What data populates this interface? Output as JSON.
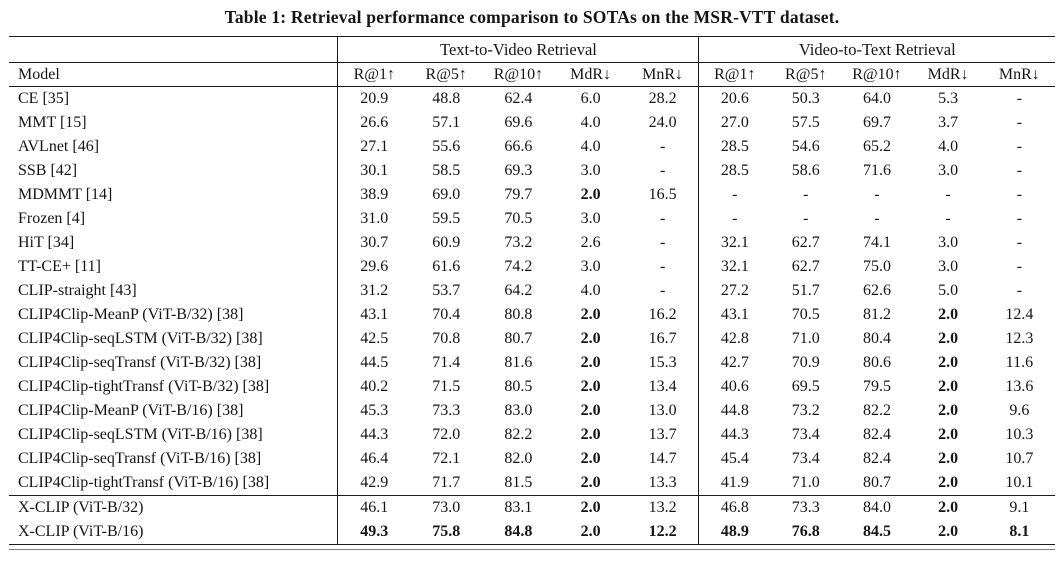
{
  "title": "Table 1: Retrieval performance comparison to SOTAs on the MSR-VTT dataset.",
  "table": {
    "group_headers": [
      {
        "label": "",
        "span": 1
      },
      {
        "label": "Text-to-Video Retrieval",
        "span": 5
      },
      {
        "label": "Video-to-Text Retrieval",
        "span": 5
      }
    ],
    "column_headers": [
      "Model",
      "R@1↑",
      "R@5↑",
      "R@10↑",
      "MdR↓",
      "MnR↓",
      "R@1↑",
      "R@5↑",
      "R@10↑",
      "MdR↓",
      "MnR↓"
    ],
    "rows": [
      {
        "model": "CE [35]",
        "values": [
          "20.9",
          "48.8",
          "62.4",
          "6.0",
          "28.2",
          "20.6",
          "50.3",
          "64.0",
          "5.3",
          "-"
        ],
        "bold": []
      },
      {
        "model": "MMT [15]",
        "values": [
          "26.6",
          "57.1",
          "69.6",
          "4.0",
          "24.0",
          "27.0",
          "57.5",
          "69.7",
          "3.7",
          "-"
        ],
        "bold": []
      },
      {
        "model": "AVLnet [46]",
        "values": [
          "27.1",
          "55.6",
          "66.6",
          "4.0",
          "-",
          "28.5",
          "54.6",
          "65.2",
          "4.0",
          "-"
        ],
        "bold": []
      },
      {
        "model": "SSB [42]",
        "values": [
          "30.1",
          "58.5",
          "69.3",
          "3.0",
          "-",
          "28.5",
          "58.6",
          "71.6",
          "3.0",
          "-"
        ],
        "bold": []
      },
      {
        "model": "MDMMT [14]",
        "values": [
          "38.9",
          "69.0",
          "79.7",
          "2.0",
          "16.5",
          "-",
          "-",
          "-",
          "-",
          "-"
        ],
        "bold": [
          3
        ]
      },
      {
        "model": "Frozen [4]",
        "values": [
          "31.0",
          "59.5",
          "70.5",
          "3.0",
          "-",
          "-",
          "-",
          "-",
          "-",
          "-"
        ],
        "bold": []
      },
      {
        "model": "HiT [34]",
        "values": [
          "30.7",
          "60.9",
          "73.2",
          "2.6",
          "-",
          "32.1",
          "62.7",
          "74.1",
          "3.0",
          "-"
        ],
        "bold": []
      },
      {
        "model": "TT-CE+ [11]",
        "values": [
          "29.6",
          "61.6",
          "74.2",
          "3.0",
          "-",
          "32.1",
          "62.7",
          "75.0",
          "3.0",
          "-"
        ],
        "bold": []
      },
      {
        "model": "CLIP-straight [43]",
        "values": [
          "31.2",
          "53.7",
          "64.2",
          "4.0",
          "-",
          "27.2",
          "51.7",
          "62.6",
          "5.0",
          "-"
        ],
        "bold": []
      },
      {
        "model": "CLIP4Clip-MeanP (ViT-B/32) [38]",
        "values": [
          "43.1",
          "70.4",
          "80.8",
          "2.0",
          "16.2",
          "43.1",
          "70.5",
          "81.2",
          "2.0",
          "12.4"
        ],
        "bold": [
          3,
          8
        ]
      },
      {
        "model": "CLIP4Clip-seqLSTM (ViT-B/32) [38]",
        "values": [
          "42.5",
          "70.8",
          "80.7",
          "2.0",
          "16.7",
          "42.8",
          "71.0",
          "80.4",
          "2.0",
          "12.3"
        ],
        "bold": [
          3,
          8
        ]
      },
      {
        "model": "CLIP4Clip-seqTransf (ViT-B/32) [38]",
        "values": [
          "44.5",
          "71.4",
          "81.6",
          "2.0",
          "15.3",
          "42.7",
          "70.9",
          "80.6",
          "2.0",
          "11.6"
        ],
        "bold": [
          3,
          8
        ]
      },
      {
        "model": "CLIP4Clip-tightTransf (ViT-B/32) [38]",
        "values": [
          "40.2",
          "71.5",
          "80.5",
          "2.0",
          "13.4",
          "40.6",
          "69.5",
          "79.5",
          "2.0",
          "13.6"
        ],
        "bold": [
          3,
          8
        ]
      },
      {
        "model": "CLIP4Clip-MeanP (ViT-B/16) [38]",
        "values": [
          "45.3",
          "73.3",
          "83.0",
          "2.0",
          "13.0",
          "44.8",
          "73.2",
          "82.2",
          "2.0",
          "9.6"
        ],
        "bold": [
          3,
          8
        ]
      },
      {
        "model": "CLIP4Clip-seqLSTM (ViT-B/16) [38]",
        "values": [
          "44.3",
          "72.0",
          "82.2",
          "2.0",
          "13.7",
          "44.3",
          "73.4",
          "82.4",
          "2.0",
          "10.3"
        ],
        "bold": [
          3,
          8
        ]
      },
      {
        "model": "CLIP4Clip-seqTransf (ViT-B/16) [38]",
        "values": [
          "46.4",
          "72.1",
          "82.0",
          "2.0",
          "14.7",
          "45.4",
          "73.4",
          "82.4",
          "2.0",
          "10.7"
        ],
        "bold": [
          3,
          8
        ]
      },
      {
        "model": "CLIP4Clip-tightTransf (ViT-B/16) [38]",
        "values": [
          "42.9",
          "71.7",
          "81.5",
          "2.0",
          "13.3",
          "41.9",
          "71.0",
          "80.7",
          "2.0",
          "10.1"
        ],
        "bold": [
          3,
          8
        ]
      },
      {
        "model": "X-CLIP (ViT-B/32)",
        "values": [
          "46.1",
          "73.0",
          "83.1",
          "2.0",
          "13.2",
          "46.8",
          "73.3",
          "84.0",
          "2.0",
          "9.1"
        ],
        "bold": [
          3,
          8
        ],
        "section_start": true
      },
      {
        "model": "X-CLIP (ViT-B/16)",
        "values": [
          "49.3",
          "75.8",
          "84.8",
          "2.0",
          "12.2",
          "48.9",
          "76.8",
          "84.5",
          "2.0",
          "8.1"
        ],
        "bold": [
          0,
          1,
          2,
          3,
          4,
          5,
          6,
          7,
          8,
          9
        ]
      }
    ]
  }
}
